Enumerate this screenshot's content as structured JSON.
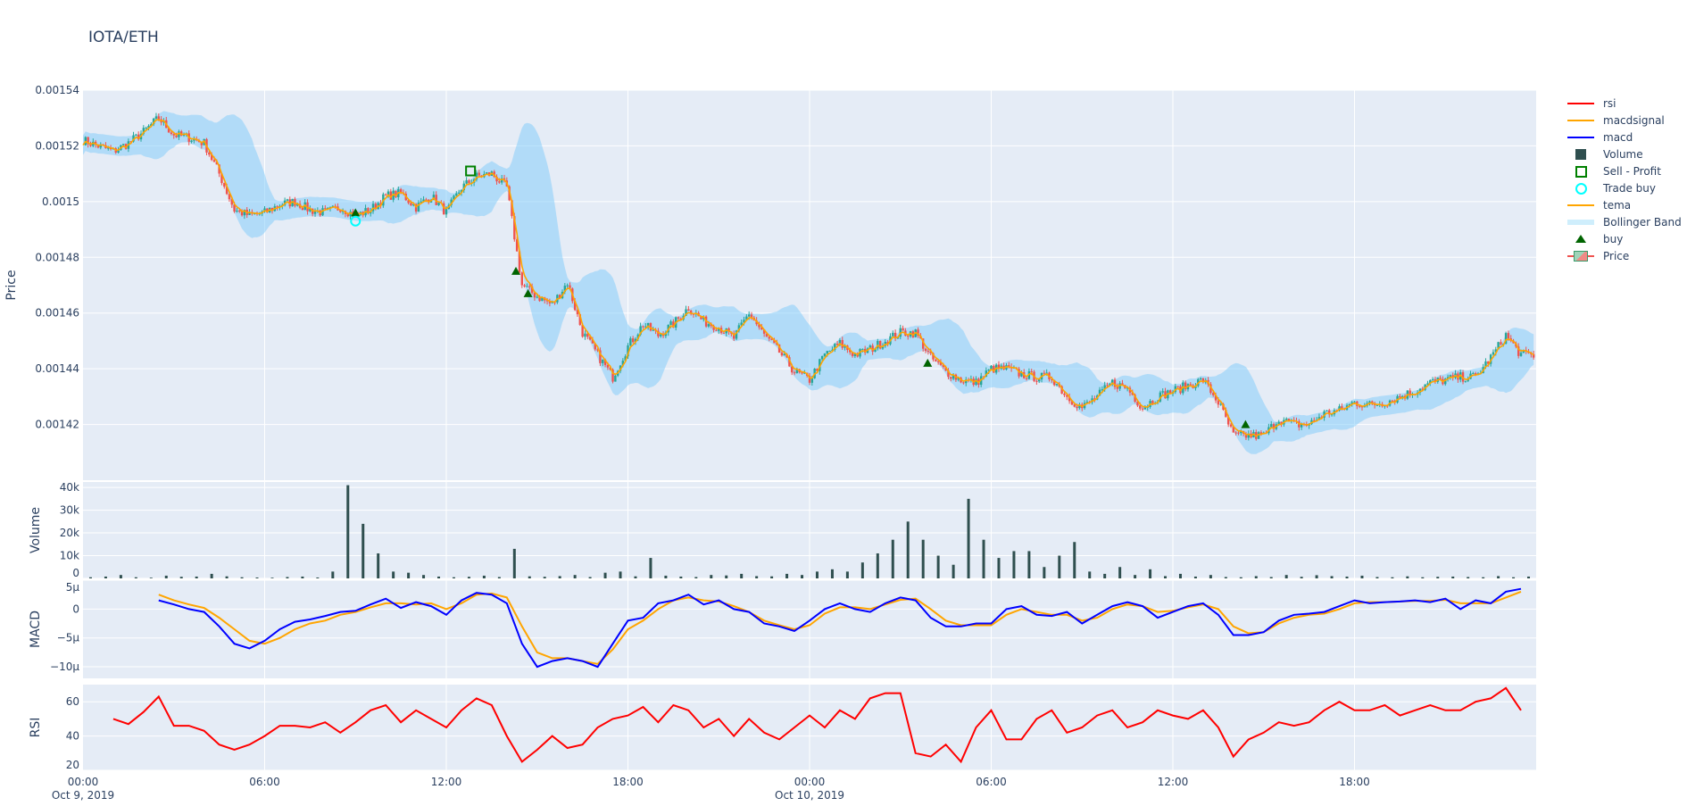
{
  "title": "IOTA/ETH",
  "colors": {
    "increasing": "#26a69a",
    "decreasing": "#ef5350",
    "band": "#87cefa",
    "tema": "#ffa500",
    "macd": "#0000ff",
    "macdsignal": "#ffa500",
    "rsi": "#ff0000",
    "volume": "#2f4f4f",
    "buy": "#006400",
    "sell_profit": "#008000",
    "trade_buy": "#00ffff",
    "plot_bg": "#e5ecf6"
  },
  "legend": [
    "rsi",
    "macdsignal",
    "macd",
    "Volume",
    "Sell - Profit",
    "Trade buy",
    "tema",
    "Bollinger Band",
    "buy",
    "Price"
  ],
  "chart_data": {
    "type": "candlestick",
    "interval_note": "30-minute samples",
    "x_ticks": [
      {
        "h": 0,
        "label": "00:00",
        "sub": "Oct 9, 2019"
      },
      {
        "h": 6,
        "label": "06:00",
        "sub": ""
      },
      {
        "h": 12,
        "label": "12:00",
        "sub": ""
      },
      {
        "h": 18,
        "label": "18:00",
        "sub": ""
      },
      {
        "h": 24,
        "label": "00:00",
        "sub": "Oct 10, 2019"
      },
      {
        "h": 30,
        "label": "06:00",
        "sub": ""
      },
      {
        "h": 36,
        "label": "12:00",
        "sub": ""
      },
      {
        "h": 42,
        "label": "18:00",
        "sub": ""
      }
    ],
    "price": {
      "ylabel": "Price",
      "ylim": [
        0.0014,
        0.00154
      ],
      "ticks": [
        "0.00142",
        "0.00144",
        "0.00146",
        "0.00148",
        "0.0015",
        "0.00152",
        "0.00154"
      ],
      "close": [
        0.001522,
        0.00152,
        0.001518,
        0.001521,
        0.001525,
        0.00153,
        0.001524,
        0.001523,
        0.001521,
        0.00151,
        0.001497,
        0.001495,
        0.001496,
        0.001499,
        0.0015,
        0.001497,
        0.001496,
        0.001498,
        0.001495,
        0.001497,
        0.001502,
        0.001503,
        0.001498,
        0.001502,
        0.001496,
        0.001505,
        0.001509,
        0.00151,
        0.001505,
        0.00147,
        0.001466,
        0.001463,
        0.001471,
        0.001453,
        0.001445,
        0.001437,
        0.001448,
        0.001456,
        0.001452,
        0.001456,
        0.001462,
        0.001457,
        0.001455,
        0.001451,
        0.00146,
        0.001452,
        0.001446,
        0.001439,
        0.001436,
        0.001445,
        0.001449,
        0.001445,
        0.001447,
        0.00145,
        0.001453,
        0.001453,
        0.001444,
        0.001439,
        0.001436,
        0.001435,
        0.00144,
        0.00144,
        0.001438,
        0.001437,
        0.001437,
        0.00143,
        0.001426,
        0.00143,
        0.001435,
        0.001433,
        0.001426,
        0.00143,
        0.001432,
        0.001434,
        0.001436,
        0.001428,
        0.001416,
        0.001416,
        0.001416,
        0.001422,
        0.00142,
        0.00142,
        0.001424,
        0.001425,
        0.001428,
        0.001427,
        0.001428,
        0.00143,
        0.001432,
        0.001435,
        0.001436,
        0.001437,
        0.001437,
        0.001444,
        0.001452,
        0.001445
      ],
      "buy": [
        {
          "h": 9,
          "y": 0.001496
        },
        {
          "h": 14.3,
          "y": 0.001475
        },
        {
          "h": 14.7,
          "y": 0.001467
        },
        {
          "h": 27.9,
          "y": 0.001442
        },
        {
          "h": 38.4,
          "y": 0.00142
        }
      ],
      "trade_buy": [
        {
          "h": 9,
          "y": 0.001493
        }
      ],
      "sell_profit": [
        {
          "h": 12.8,
          "y": 0.001511
        }
      ]
    },
    "volume": {
      "ylabel": "Volume",
      "ylim": [
        0,
        42400
      ],
      "ticks": [
        "0",
        "10k",
        "20k",
        "30k",
        "40k"
      ],
      "values": [
        500,
        800,
        1500,
        500,
        300,
        1200,
        700,
        800,
        2000,
        900,
        500,
        400,
        300,
        600,
        800,
        400,
        3000,
        41000,
        24000,
        11000,
        3000,
        2500,
        1500,
        800,
        500,
        700,
        1200,
        600,
        13000,
        900,
        700,
        1000,
        1500,
        600,
        2500,
        3000,
        900,
        9000,
        1200,
        800,
        600,
        1500,
        1300,
        2000,
        1000,
        900,
        2000,
        1500,
        3000,
        4000,
        3000,
        7000,
        11000,
        17000,
        25000,
        17000,
        10000,
        6000,
        35000,
        17000,
        9000,
        12000,
        12000,
        5000,
        10000,
        16000,
        3000,
        2000,
        5000,
        1500,
        4000,
        1000,
        2000,
        800,
        1500,
        600,
        500,
        1000,
        600,
        1500,
        700,
        1400,
        1000,
        800,
        1200,
        600,
        500,
        900,
        500,
        700,
        800,
        600,
        500,
        1000,
        500,
        800
      ],
      "values_h_offset": -1.0
    },
    "macd": {
      "ylabel": "MACD",
      "ylim": [
        -12,
        5
      ],
      "unit": "µ",
      "ticks": [
        "−10µ",
        "−5µ",
        "0",
        "5µ"
      ],
      "macd": [
        null,
        null,
        null,
        null,
        null,
        1.5,
        0.8,
        0,
        -0.5,
        -3,
        -6,
        -6.8,
        -5.5,
        -3.5,
        -2.2,
        -1.8,
        -1.2,
        -0.5,
        -0.3,
        0.8,
        1.8,
        0.2,
        1.2,
        0.5,
        -1,
        1.5,
        2.8,
        2.5,
        1,
        -6,
        -10,
        -9,
        -8.5,
        -9,
        -10,
        -6,
        -2,
        -1.5,
        1,
        1.5,
        2.5,
        0.8,
        1.5,
        0,
        -0.5,
        -2.5,
        -3,
        -3.8,
        -2,
        0,
        1,
        0,
        -0.5,
        1,
        2,
        1.5,
        -1.5,
        -3,
        -3,
        -2.5,
        -2.5,
        0,
        0.5,
        -1,
        -1.2,
        -0.5,
        -2.5,
        -1,
        0.5,
        1.2,
        0.5,
        -1.5,
        -0.5,
        0.5,
        1,
        -1,
        -4.5,
        -4.5,
        -4,
        -2,
        -1,
        -0.8,
        -0.5,
        0.5,
        1.5,
        1,
        1.2,
        1.3,
        1.5,
        1.2,
        1.8,
        0,
        1.5,
        1,
        3,
        3.5
      ],
      "macdsignal": [
        null,
        null,
        null,
        null,
        null,
        2.5,
        1.5,
        0.8,
        0.2,
        -1.5,
        -3.5,
        -5.5,
        -6,
        -5,
        -3.5,
        -2.5,
        -2,
        -1,
        -0.5,
        0.3,
        1,
        1,
        0.8,
        1,
        0,
        1,
        2.5,
        2.7,
        2,
        -3,
        -7.5,
        -8.5,
        -8.5,
        -9,
        -9.5,
        -7,
        -3.5,
        -2,
        0,
        1.5,
        2,
        1.5,
        1.3,
        0.5,
        -0.5,
        -2,
        -2.8,
        -3.5,
        -2.8,
        -0.8,
        0.3,
        0.3,
        0,
        0.8,
        1.6,
        1.8,
        0,
        -2,
        -2.8,
        -2.8,
        -2.8,
        -1,
        0,
        -0.5,
        -1,
        -1,
        -2,
        -1.5,
        0,
        0.8,
        0.5,
        -0.5,
        -0.3,
        0.3,
        0.8,
        0,
        -3,
        -4.2,
        -4,
        -2.5,
        -1.5,
        -1,
        -0.8,
        0,
        1,
        1.2,
        1.2,
        1.3,
        1.4,
        1.4,
        1.6,
        1,
        1,
        1,
        2,
        3
      ]
    },
    "rsi": {
      "ylabel": "RSI",
      "ylim": [
        20,
        70
      ],
      "ticks": [
        "20",
        "40",
        "60"
      ],
      "values": [
        null,
        null,
        50,
        47,
        54,
        63,
        46,
        46,
        43,
        35,
        32,
        35,
        40,
        46,
        46,
        45,
        48,
        42,
        48,
        55,
        58,
        48,
        55,
        50,
        45,
        55,
        62,
        58,
        40,
        25,
        32,
        40,
        33,
        35,
        45,
        50,
        52,
        57,
        48,
        58,
        55,
        45,
        50,
        40,
        50,
        42,
        38,
        45,
        52,
        45,
        55,
        50,
        62,
        65,
        65,
        30,
        28,
        35,
        25,
        45,
        55,
        38,
        38,
        50,
        55,
        42,
        45,
        52,
        55,
        45,
        48,
        55,
        52,
        50,
        55,
        45,
        28,
        38,
        42,
        48,
        46,
        48,
        55,
        60,
        55,
        55,
        58,
        52,
        55,
        58,
        55,
        55,
        60,
        62,
        68,
        55
      ]
    }
  }
}
